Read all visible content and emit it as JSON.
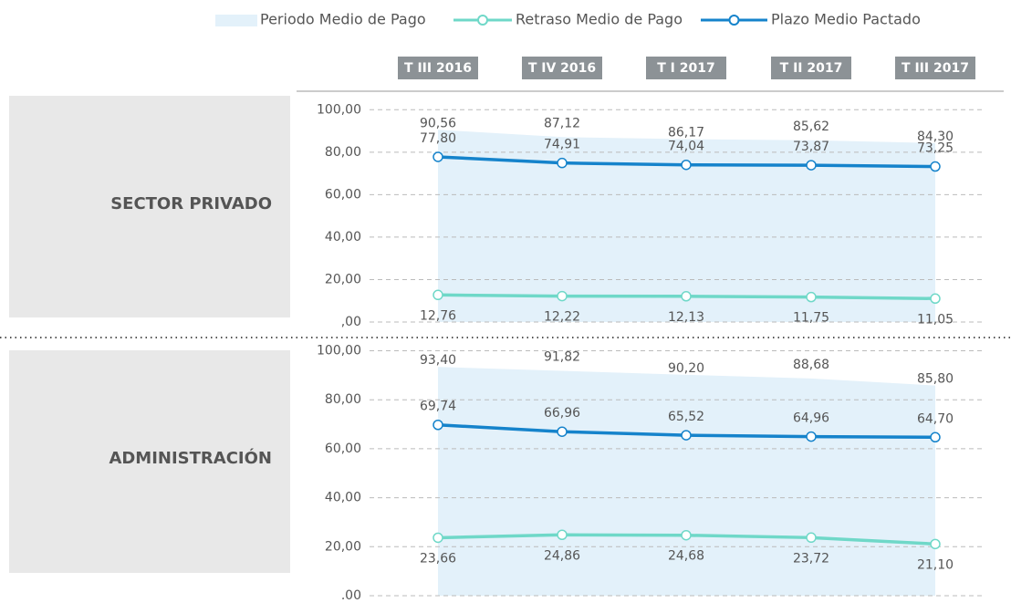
{
  "chart_data": [
    {
      "type": "line",
      "title": "SECTOR PRIVADO",
      "categories": [
        "T III 2016",
        "T IV 2016",
        "T I 2017",
        "T II 2017",
        "T III 2017"
      ],
      "ylim": [
        0,
        100
      ],
      "yticks": [
        {
          "value": 0,
          "label": ",00"
        },
        {
          "value": 20,
          "label": "20,00"
        },
        {
          "value": 40,
          "label": "40,00"
        },
        {
          "value": 60,
          "label": "60,00"
        },
        {
          "value": 80,
          "label": "80,00"
        },
        {
          "value": 100,
          "label": "100,00"
        }
      ],
      "grid": true,
      "series": [
        {
          "name": "Periodo Medio de Pago",
          "kind": "area",
          "color": "#e3f1fa",
          "values": [
            90.56,
            87.12,
            86.17,
            85.62,
            84.3
          ],
          "value_labels": [
            "90,56",
            "87,12",
            "86,17",
            "85,62",
            "84,30"
          ]
        },
        {
          "name": "Retraso Medio de Pago",
          "kind": "line",
          "color": "#6fd8c8",
          "values": [
            12.76,
            12.22,
            12.13,
            11.75,
            11.05
          ],
          "value_labels": [
            "12,76",
            "12,22",
            "12,13",
            "11,75",
            "11,05"
          ]
        },
        {
          "name": "Plazo Medio Pactado",
          "kind": "line",
          "color": "#1583cb",
          "values": [
            77.8,
            74.91,
            74.04,
            73.87,
            73.25
          ],
          "value_labels": [
            "77,80",
            "74,91",
            "74,04",
            "73,87",
            "73,25"
          ]
        }
      ]
    },
    {
      "type": "line",
      "title": "ADMINISTRACIÓN",
      "ylim": [
        0,
        100
      ],
      "yticks": [
        {
          "value": 0,
          "label": ",00"
        },
        {
          "value": 20,
          "label": "20,00"
        },
        {
          "value": 40,
          "label": "40,00"
        },
        {
          "value": 60,
          "label": "60,00"
        },
        {
          "value": 80,
          "label": "80,00"
        },
        {
          "value": 100,
          "label": "100,00"
        }
      ],
      "grid": true,
      "series": [
        {
          "kind": "area",
          "color": "#e3f1fa",
          "values": [
            93.4,
            91.82,
            90.2,
            88.68,
            85.8
          ],
          "value_labels": [
            "93,40",
            "91,82",
            "90,20",
            "88,68",
            "85,80"
          ]
        },
        {
          "kind": "line",
          "color": "#6fd8c8",
          "values": [
            23.66,
            24.86,
            24.68,
            23.72,
            21.1
          ],
          "value_labels": [
            "23,66",
            "24,86",
            "24,68",
            "23,72",
            "21,10"
          ]
        },
        {
          "kind": "line",
          "color": "#1583cb",
          "values": [
            69.74,
            66.96,
            65.52,
            64.96,
            64.7
          ],
          "value_labels": [
            "69,74",
            "66,96",
            "65,52",
            "64,96",
            "64,70"
          ]
        }
      ]
    }
  ]
}
